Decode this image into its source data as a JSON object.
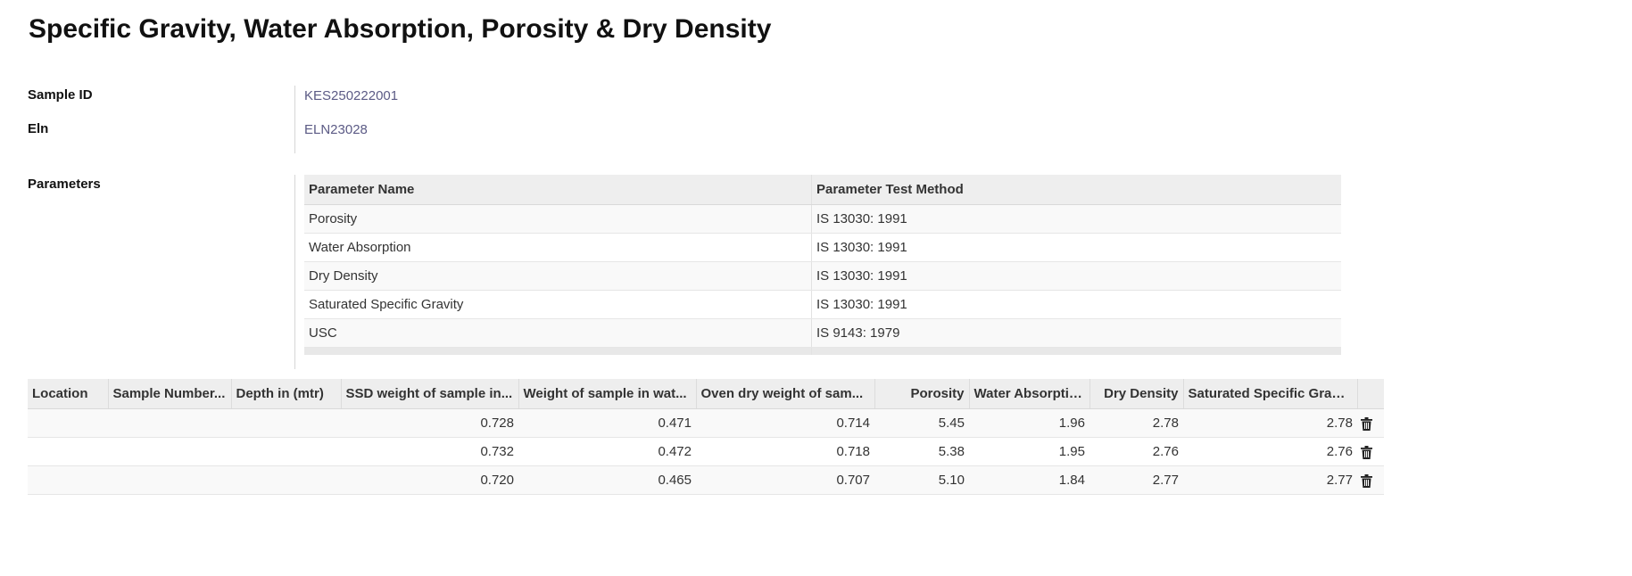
{
  "page": {
    "title": "Specific Gravity, Water Absorption, Porosity & Dry Density"
  },
  "fields": {
    "sample_id_label": "Sample ID",
    "sample_id_value": "KES250222001",
    "eln_label": "Eln",
    "eln_value": "ELN23028",
    "parameters_label": "Parameters"
  },
  "parameters_table": {
    "headers": [
      "Parameter Name",
      "Parameter Test Method"
    ],
    "rows": [
      {
        "name": "Porosity",
        "method": "IS 13030: 1991"
      },
      {
        "name": "Water Absorption",
        "method": "IS 13030: 1991"
      },
      {
        "name": "Dry Density",
        "method": "IS 13030: 1991"
      },
      {
        "name": "Saturated Specific Gravity",
        "method": "IS 13030: 1991"
      },
      {
        "name": "USC",
        "method": "IS 9143: 1979"
      }
    ]
  },
  "results_table": {
    "headers": [
      "Location",
      "Sample Number...",
      "Depth in (mtr)",
      "SSD weight of sample in...",
      "Weight of sample in wat...",
      "Oven dry weight of sam...",
      "Porosity",
      "Water Absorption",
      "Dry Density",
      "Saturated Specific Gravity"
    ],
    "rows": [
      {
        "location": "",
        "sample_number": "",
        "depth": "",
        "ssd_weight": "0.728",
        "weight_in_water": "0.471",
        "oven_dry_weight": "0.714",
        "porosity": "5.45",
        "water_absorption": "1.96",
        "dry_density": "2.78",
        "saturated_sg": "2.78"
      },
      {
        "location": "",
        "sample_number": "",
        "depth": "",
        "ssd_weight": "0.732",
        "weight_in_water": "0.472",
        "oven_dry_weight": "0.718",
        "porosity": "5.38",
        "water_absorption": "1.95",
        "dry_density": "2.76",
        "saturated_sg": "2.76"
      },
      {
        "location": "",
        "sample_number": "",
        "depth": "",
        "ssd_weight": "0.720",
        "weight_in_water": "0.465",
        "oven_dry_weight": "0.707",
        "porosity": "5.10",
        "water_absorption": "1.84",
        "dry_density": "2.77",
        "saturated_sg": "2.77"
      }
    ],
    "row_action_icon": "trash-icon"
  },
  "colors": {
    "link_value": "#5b5a85",
    "header_bg": "#eeeeee",
    "striped_row_bg": "#f9f9f9"
  }
}
